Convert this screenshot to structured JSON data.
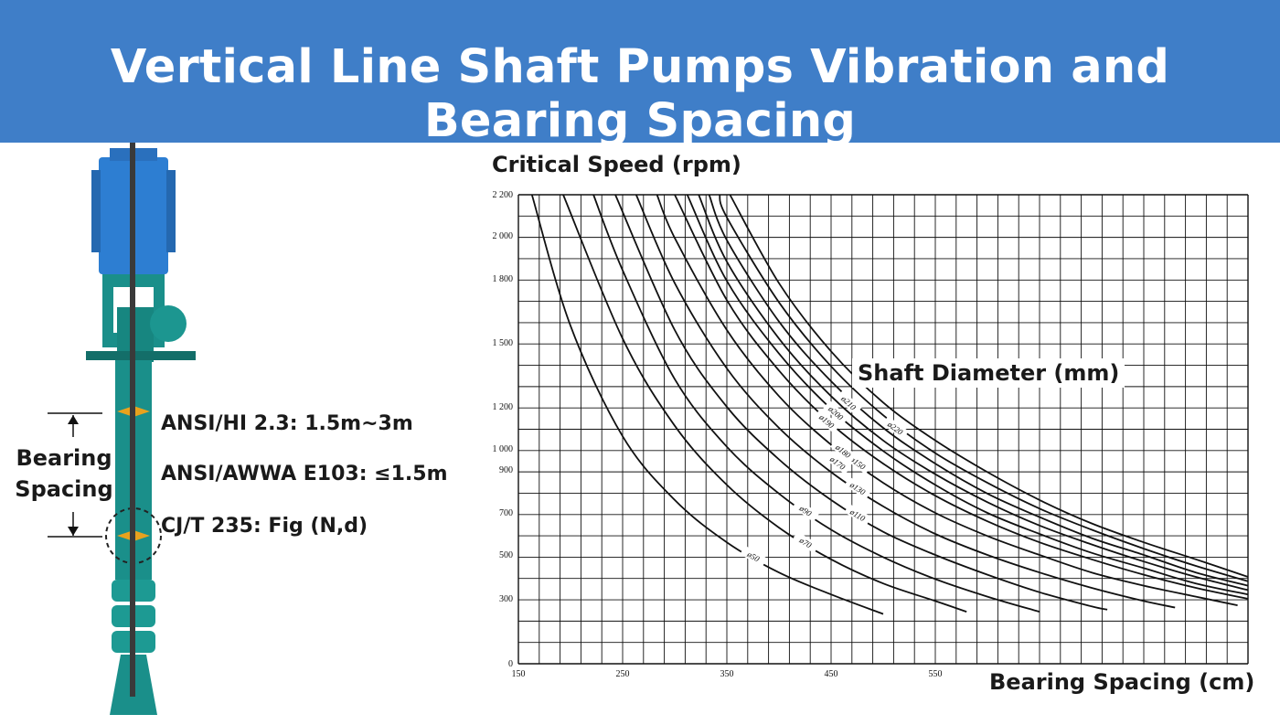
{
  "header": {
    "title": "Vertical Line Shaft Pumps Vibration and Bearing Spacing"
  },
  "left_panel": {
    "bearing_spacing_line1": "Bearing",
    "bearing_spacing_line2": "Spacing",
    "standards": [
      "ANSI/HI 2.3: 1.5m~3m",
      "ANSI/AWWA E103: ≤1.5m",
      "CJ/T 235: Fig (N,d)"
    ],
    "colors": {
      "pump_body": "#1a8f8a",
      "motor": "#2d7ed2",
      "bearing": "#e8a21e"
    }
  },
  "chart_data": {
    "type": "line",
    "ylabel": "Critical Speed (rpm)",
    "xlabel": "Bearing Spacing (cm)",
    "annotation": "Shaft Diameter (mm)",
    "xlim": [
      150,
      850
    ],
    "x_ticks": [
      "150",
      "250",
      "350",
      "450",
      "550"
    ],
    "y_ticks": [
      "0",
      "300",
      "500",
      "700",
      "900",
      "1 000",
      "1 200",
      "1 500",
      "1 800",
      "2 000",
      "2 200"
    ],
    "grid": true,
    "series": [
      {
        "name": "ø50",
        "x": [
          163,
          200,
          250,
          300,
          350,
          400,
          450,
          500
        ],
        "y": [
          2200,
          1580,
          1060,
          760,
          560,
          420,
          320,
          230
        ]
      },
      {
        "name": "ø70",
        "x": [
          193,
          250,
          300,
          350,
          400,
          450,
          500,
          550,
          580
        ],
        "y": [
          2200,
          1520,
          1110,
          830,
          630,
          480,
          370,
          290,
          240
        ]
      },
      {
        "name": "ø90",
        "x": [
          222,
          250,
          300,
          350,
          400,
          450,
          500,
          550,
          600,
          650
        ],
        "y": [
          2200,
          1840,
          1330,
          1010,
          790,
          620,
          490,
          390,
          310,
          240
        ]
      },
      {
        "name": "ø110",
        "x": [
          243,
          300,
          350,
          400,
          450,
          500,
          550,
          600,
          650,
          700,
          715
        ],
        "y": [
          2200,
          1560,
          1200,
          950,
          760,
          610,
          500,
          410,
          330,
          265,
          250
        ]
      },
      {
        "name": "ø130",
        "x": [
          263,
          300,
          350,
          400,
          450,
          500,
          550,
          600,
          650,
          700,
          750,
          780
        ],
        "y": [
          2200,
          1780,
          1380,
          1100,
          890,
          730,
          600,
          500,
          420,
          350,
          290,
          260
        ]
      },
      {
        "name": "ø150",
        "x": [
          283,
          300,
          350,
          400,
          450,
          500,
          550,
          600,
          650,
          700,
          750,
          800,
          840
        ],
        "y": [
          2200,
          1990,
          1560,
          1250,
          1020,
          840,
          700,
          590,
          500,
          420,
          360,
          310,
          270
        ]
      },
      {
        "name": "ø170",
        "x": [
          300,
          350,
          400,
          450,
          500,
          550,
          600,
          650,
          700,
          750,
          800,
          850
        ],
        "y": [
          2200,
          1700,
          1370,
          1120,
          930,
          780,
          660,
          560,
          480,
          410,
          350,
          300
        ]
      },
      {
        "name": "ø180",
        "x": [
          312,
          350,
          400,
          450,
          500,
          550,
          600,
          650,
          700,
          750,
          800,
          850
        ],
        "y": [
          2200,
          1790,
          1450,
          1190,
          990,
          830,
          700,
          600,
          510,
          440,
          370,
          320
        ]
      },
      {
        "name": "ø190",
        "x": [
          323,
          350,
          400,
          450,
          500,
          550,
          600,
          650,
          700,
          750,
          800,
          850
        ],
        "y": [
          2200,
          1880,
          1520,
          1250,
          1040,
          880,
          750,
          640,
          550,
          470,
          400,
          340
        ]
      },
      {
        "name": "ø200",
        "x": [
          333,
          350,
          400,
          450,
          500,
          550,
          600,
          650,
          700,
          750,
          800,
          850
        ],
        "y": [
          2200,
          1980,
          1600,
          1320,
          1100,
          930,
          790,
          680,
          580,
          500,
          420,
          360
        ]
      },
      {
        "name": "ø210",
        "x": [
          343,
          350,
          400,
          450,
          500,
          550,
          600,
          650,
          700,
          750,
          800,
          850
        ],
        "y": [
          2200,
          2090,
          1690,
          1390,
          1160,
          980,
          840,
          720,
          620,
          530,
          450,
          380
        ]
      },
      {
        "name": "ø220",
        "x": [
          353,
          400,
          450,
          500,
          550,
          600,
          650,
          700,
          750,
          800,
          850
        ],
        "y": [
          2200,
          1780,
          1460,
          1220,
          1040,
          890,
          760,
          650,
          560,
          480,
          400
        ]
      }
    ]
  }
}
